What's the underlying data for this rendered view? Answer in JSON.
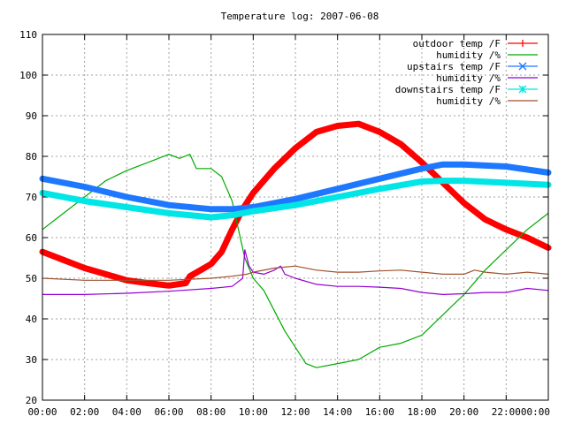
{
  "chart_data": {
    "type": "line",
    "title": "Temperature log: 2007-06-08",
    "xlabel": "",
    "ylabel": "",
    "xlim": [
      0,
      24
    ],
    "ylim": [
      20,
      110
    ],
    "grid": true,
    "legend_position": "top-right",
    "x_ticks": [
      {
        "v": 0,
        "label": "00:00"
      },
      {
        "v": 2,
        "label": "02:00"
      },
      {
        "v": 4,
        "label": "04:00"
      },
      {
        "v": 6,
        "label": "06:00"
      },
      {
        "v": 8,
        "label": "08:00"
      },
      {
        "v": 10,
        "label": "10:00"
      },
      {
        "v": 12,
        "label": "12:00"
      },
      {
        "v": 14,
        "label": "14:00"
      },
      {
        "v": 16,
        "label": "16:00"
      },
      {
        "v": 18,
        "label": "18:00"
      },
      {
        "v": 20,
        "label": "20:00"
      },
      {
        "v": 22,
        "label": "22:00"
      },
      {
        "v": 24,
        "label": "00:00"
      }
    ],
    "y_ticks": [
      {
        "v": 20,
        "label": "20"
      },
      {
        "v": 30,
        "label": "30"
      },
      {
        "v": 40,
        "label": "40"
      },
      {
        "v": 50,
        "label": "50"
      },
      {
        "v": 60,
        "label": "60"
      },
      {
        "v": 70,
        "label": "70"
      },
      {
        "v": 80,
        "label": "80"
      },
      {
        "v": 90,
        "label": "90"
      },
      {
        "v": 100,
        "label": "100"
      },
      {
        "v": 110,
        "label": "110"
      }
    ],
    "series": [
      {
        "name": "outdoor temp /F",
        "color": "#ff0000",
        "marker": "plus",
        "thick": true,
        "points": [
          [
            0,
            56.5
          ],
          [
            1,
            54.5
          ],
          [
            2,
            52.5
          ],
          [
            3,
            51
          ],
          [
            4,
            49.5
          ],
          [
            5,
            48.8
          ],
          [
            6,
            48.2
          ],
          [
            6.8,
            48.8
          ],
          [
            7,
            50.5
          ],
          [
            7.5,
            52
          ],
          [
            8,
            53.5
          ],
          [
            8.5,
            56.5
          ],
          [
            9,
            62
          ],
          [
            9.5,
            67
          ],
          [
            10,
            71
          ],
          [
            10.5,
            74
          ],
          [
            11,
            77
          ],
          [
            12,
            82
          ],
          [
            13,
            86
          ],
          [
            14,
            87.5
          ],
          [
            15,
            88
          ],
          [
            16,
            86
          ],
          [
            17,
            83
          ],
          [
            18,
            78.5
          ],
          [
            19,
            73.5
          ],
          [
            20,
            68.5
          ],
          [
            21,
            64.5
          ],
          [
            22,
            62
          ],
          [
            23,
            60
          ],
          [
            24,
            57.5
          ]
        ]
      },
      {
        "name": "humidity /%",
        "color": "#00aa00",
        "marker": "none",
        "thick": false,
        "points": [
          [
            0,
            62
          ],
          [
            1,
            66
          ],
          [
            2,
            70
          ],
          [
            3,
            74
          ],
          [
            4,
            76.5
          ],
          [
            5,
            78.5
          ],
          [
            6,
            80.5
          ],
          [
            6.5,
            79.5
          ],
          [
            7,
            80.5
          ],
          [
            7.3,
            77
          ],
          [
            8,
            77
          ],
          [
            8.5,
            75
          ],
          [
            9,
            69
          ],
          [
            9.3,
            62
          ],
          [
            9.6,
            55
          ],
          [
            10,
            50
          ],
          [
            10.5,
            47
          ],
          [
            11,
            42
          ],
          [
            11.5,
            37
          ],
          [
            12,
            33
          ],
          [
            12.5,
            29
          ],
          [
            13,
            28
          ],
          [
            14,
            29
          ],
          [
            15,
            30
          ],
          [
            16,
            33
          ],
          [
            17,
            34
          ],
          [
            18,
            36
          ],
          [
            19,
            41
          ],
          [
            20,
            46
          ],
          [
            21,
            52
          ],
          [
            22,
            57
          ],
          [
            23,
            62
          ],
          [
            24,
            66
          ]
        ]
      },
      {
        "name": "upstairs temp /F",
        "color": "#1e78ff",
        "marker": "x",
        "thick": true,
        "points": [
          [
            0,
            74.5
          ],
          [
            2,
            72.5
          ],
          [
            4,
            70
          ],
          [
            6,
            68
          ],
          [
            8,
            67
          ],
          [
            9,
            67
          ],
          [
            10,
            67.5
          ],
          [
            12,
            69.5
          ],
          [
            14,
            72
          ],
          [
            16,
            74.5
          ],
          [
            18,
            77
          ],
          [
            19,
            78
          ],
          [
            20,
            78
          ],
          [
            22,
            77.5
          ],
          [
            24,
            76
          ]
        ]
      },
      {
        "name": "humidity /%",
        "color": "#9400d3",
        "marker": "none",
        "thick": false,
        "points": [
          [
            0,
            46
          ],
          [
            2,
            46
          ],
          [
            4,
            46.3
          ],
          [
            6,
            46.8
          ],
          [
            8,
            47.5
          ],
          [
            9,
            48
          ],
          [
            9.5,
            50
          ],
          [
            9.6,
            57
          ],
          [
            9.8,
            53
          ],
          [
            10,
            51.5
          ],
          [
            10.5,
            51
          ],
          [
            11,
            52
          ],
          [
            11.3,
            53
          ],
          [
            11.5,
            51
          ],
          [
            12,
            50
          ],
          [
            13,
            48.5
          ],
          [
            14,
            48
          ],
          [
            15,
            48
          ],
          [
            16,
            47.8
          ],
          [
            17,
            47.5
          ],
          [
            18,
            46.5
          ],
          [
            19,
            46
          ],
          [
            20,
            46.2
          ],
          [
            21,
            46.5
          ],
          [
            22,
            46.5
          ],
          [
            23,
            47.5
          ],
          [
            24,
            47
          ]
        ]
      },
      {
        "name": "downstairs temp /F",
        "color": "#00e5e5",
        "marker": "star",
        "thick": true,
        "points": [
          [
            0,
            71
          ],
          [
            2,
            69
          ],
          [
            4,
            67.5
          ],
          [
            6,
            66
          ],
          [
            8,
            65
          ],
          [
            9,
            65.5
          ],
          [
            10,
            66.5
          ],
          [
            12,
            68
          ],
          [
            14,
            70
          ],
          [
            16,
            72
          ],
          [
            18,
            73.8
          ],
          [
            19,
            74
          ],
          [
            20,
            74
          ],
          [
            22,
            73.5
          ],
          [
            24,
            73
          ]
        ]
      },
      {
        "name": "humidity /%",
        "color": "#a0522d",
        "marker": "none",
        "thick": false,
        "points": [
          [
            0,
            50
          ],
          [
            2,
            49.5
          ],
          [
            4,
            49.5
          ],
          [
            6,
            49.5
          ],
          [
            8,
            50
          ],
          [
            9,
            50.5
          ],
          [
            9.7,
            51
          ],
          [
            10,
            51.5
          ],
          [
            11,
            52.5
          ],
          [
            12,
            53
          ],
          [
            13,
            52
          ],
          [
            14,
            51.5
          ],
          [
            15,
            51.5
          ],
          [
            16,
            51.8
          ],
          [
            17,
            52
          ],
          [
            18,
            51.5
          ],
          [
            19,
            51
          ],
          [
            20,
            51
          ],
          [
            20.5,
            52
          ],
          [
            21,
            51.5
          ],
          [
            22,
            51
          ],
          [
            23,
            51.5
          ],
          [
            24,
            51
          ]
        ]
      }
    ]
  }
}
